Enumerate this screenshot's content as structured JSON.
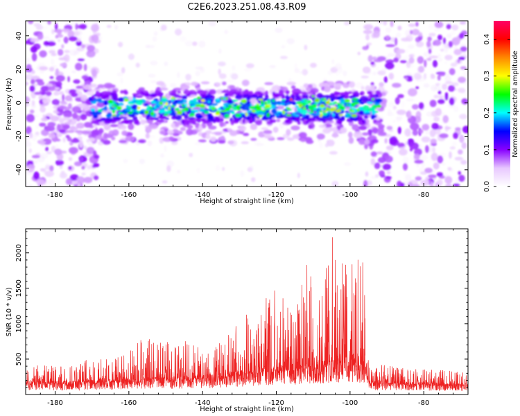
{
  "figure_title": "C2E6.2023.251.08.43.R09",
  "colors": {
    "axis": "#000000",
    "snr_line": "#ee2222",
    "background": "#ffffff"
  },
  "chart_data": [
    {
      "type": "heatmap",
      "name": "spectrogram",
      "xlabel": "Height of straight line (km)",
      "ylabel": "Frequency (Hz)",
      "xlim": [
        -188,
        -68
      ],
      "ylim": [
        -50,
        49
      ],
      "xticks": [
        -180,
        -160,
        -140,
        -120,
        -100,
        -80
      ],
      "yticks": [
        -40,
        -20,
        0,
        20,
        40
      ],
      "colorbar": {
        "label": "Normalized spectral amplitude",
        "range": [
          0.0,
          0.45
        ],
        "ticks": [
          0.0,
          0.1,
          0.2,
          0.3,
          0.4
        ],
        "colormap": [
          "#ffffff",
          "#e8c8ff",
          "#8800ff",
          "#0000ff",
          "#00ffff",
          "#00ff00",
          "#ffff00",
          "#ff8800",
          "#ff0000",
          "#ff0066"
        ]
      },
      "features": [
        {
          "description_x_range_km": [
            -188,
            -168
          ],
          "freq_band_hz": [
            -50,
            49
          ],
          "level": "moderate (0.05-0.15)"
        },
        {
          "description_x_range_km": [
            -168,
            -92
          ],
          "freq_band_hz": [
            -15,
            10
          ],
          "level": "high (0.15-0.4)"
        },
        {
          "description_x_range_km": [
            -96,
            -68
          ],
          "freq_band_hz": [
            -50,
            49
          ],
          "level": "moderate (0.05-0.15)"
        }
      ]
    },
    {
      "type": "line",
      "name": "snr",
      "xlabel": "Height of straight line (km)",
      "ylabel": "SNR (10 * v/v)",
      "xlim": [
        -188,
        -68
      ],
      "ylim": [
        0,
        2340
      ],
      "xticks": [
        -180,
        -160,
        -140,
        -120,
        -100,
        -80
      ],
      "yticks": [
        500,
        1000,
        1500,
        2000
      ],
      "envelope": [
        {
          "x": -188,
          "base": 150,
          "peak": 420
        },
        {
          "x": -175,
          "base": 150,
          "peak": 400
        },
        {
          "x": -170,
          "base": 160,
          "peak": 540
        },
        {
          "x": -165,
          "base": 170,
          "peak": 500
        },
        {
          "x": -160,
          "base": 180,
          "peak": 620
        },
        {
          "x": -157,
          "base": 190,
          "peak": 810
        },
        {
          "x": -150,
          "base": 200,
          "peak": 750
        },
        {
          "x": -145,
          "base": 200,
          "peak": 800
        },
        {
          "x": -140,
          "base": 220,
          "peak": 650
        },
        {
          "x": -135,
          "base": 240,
          "peak": 750
        },
        {
          "x": -130,
          "base": 270,
          "peak": 1080
        },
        {
          "x": -125,
          "base": 300,
          "peak": 1250
        },
        {
          "x": -120,
          "base": 320,
          "peak": 1600
        },
        {
          "x": -115,
          "base": 340,
          "peak": 1050
        },
        {
          "x": -112,
          "base": 360,
          "peak": 1950
        },
        {
          "x": -108,
          "base": 380,
          "peak": 1400
        },
        {
          "x": -105,
          "base": 420,
          "peak": 2340
        },
        {
          "x": -102,
          "base": 420,
          "peak": 2200
        },
        {
          "x": -98,
          "base": 400,
          "peak": 2150
        },
        {
          "x": -96,
          "base": 380,
          "peak": 2000
        },
        {
          "x": -95,
          "base": 150,
          "peak": 450
        },
        {
          "x": -85,
          "base": 140,
          "peak": 380
        },
        {
          "x": -68,
          "base": 120,
          "peak": 320
        }
      ]
    }
  ]
}
